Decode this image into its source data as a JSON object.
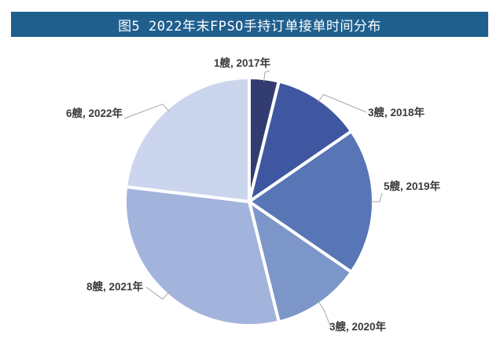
{
  "title": "图5  2022年末FPSO手持订单接单时间分布",
  "colors": {
    "title_bg": "#1f5f8e",
    "leader_line": "#a6a6a6",
    "separator": "#ffffff"
  },
  "chart_data": {
    "type": "pie",
    "title": "图5  2022年末FPSO手持订单接单时间分布",
    "legend": "none",
    "slices": [
      {
        "label": "1艘, 2017年",
        "value": 1,
        "color": "#323c70"
      },
      {
        "label": "3艘, 2018年",
        "value": 3,
        "color": "#3f56a0"
      },
      {
        "label": "5艘, 2019年",
        "value": 5,
        "color": "#5875b6"
      },
      {
        "label": "3艘, 2020年",
        "value": 3,
        "color": "#7c96c9"
      },
      {
        "label": "8艘, 2021年",
        "value": 8,
        "color": "#a2b4dc"
      },
      {
        "label": "6艘, 2022年",
        "value": 6,
        "color": "#cbd5ed"
      }
    ]
  }
}
